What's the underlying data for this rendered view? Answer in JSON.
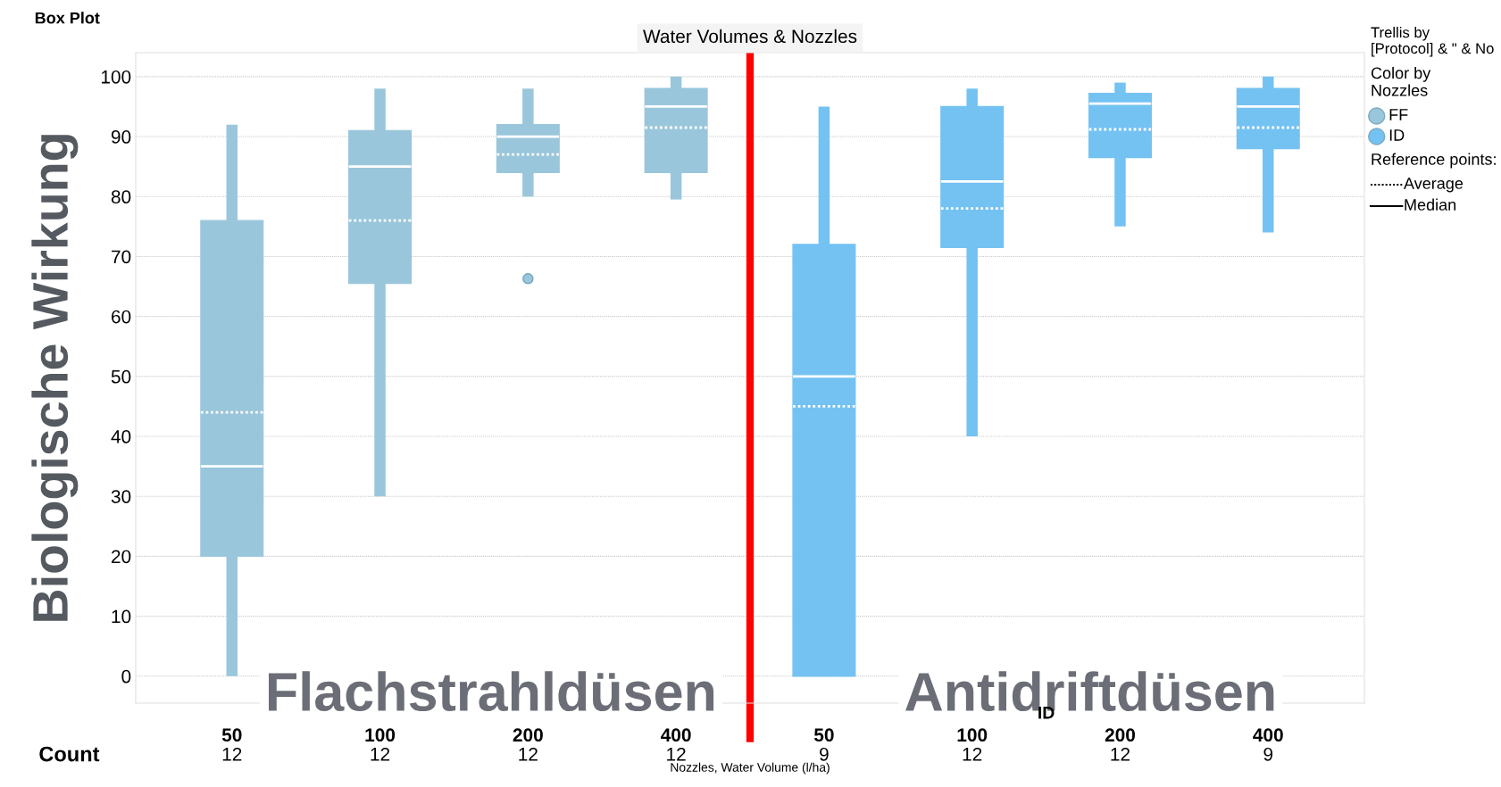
{
  "chart_data": {
    "type": "box",
    "title": "Box Plot",
    "subtitle": "Water Volumes & Nozzles",
    "ylabel": "Biologische Wirkung",
    "xlabel": "Nozzles, Water Volume (l/ha)",
    "legend_title": "Color by\nNozzles",
    "categories": [
      "50",
      "100",
      "200",
      "400",
      "50",
      "100",
      "200",
      "400"
    ],
    "series": [
      {
        "name": "FF",
        "color": "#9ac6db",
        "boxes": [
          {
            "low": 0,
            "q1": 20,
            "median": 35,
            "q3": 76,
            "high": 92,
            "mean": 44
          },
          {
            "low": 30,
            "q1": 65.5,
            "median": 85,
            "q3": 91,
            "high": 98,
            "mean": 76
          },
          {
            "low": 80,
            "q1": 84,
            "median": 90,
            "q3": 92,
            "high": 98,
            "mean": 87,
            "outliers": [
              66.3
            ]
          },
          {
            "low": 79.5,
            "q1": 84,
            "median": 95,
            "q3": 98,
            "high": 100,
            "mean": 91.5
          },
          null,
          null,
          null,
          null
        ]
      },
      {
        "name": "ID",
        "color": "#74c2f2",
        "boxes": [
          null,
          null,
          null,
          null,
          {
            "low": 0,
            "q1": 0,
            "median": 50,
            "q3": 72,
            "high": 95,
            "mean": 45
          },
          {
            "low": 40,
            "q1": 71.5,
            "median": 82.5,
            "q3": 95,
            "high": 98,
            "mean": 78
          },
          {
            "low": 75,
            "q1": 86.5,
            "median": 95.5,
            "q3": 97.2,
            "high": 99,
            "mean": 91.2
          },
          {
            "low": 74,
            "q1": 88,
            "median": 95,
            "q3": 98,
            "high": 100,
            "mean": 91.5
          }
        ]
      }
    ],
    "ylim": [
      -4.5,
      104
    ],
    "yticks": [
      0,
      10,
      20,
      30,
      40,
      50,
      60,
      70,
      80,
      90,
      100
    ],
    "grid": "y",
    "legend": "right",
    "annotations": [
      "Flachstrahldüsen",
      "Antidriftdüsen",
      "ID",
      "Count",
      "12",
      "12",
      "12",
      "12",
      "9",
      "12",
      "12",
      "9",
      "Trellis by\n[Protocol] & \" & No",
      "Reference points:",
      "Average",
      "Median"
    ]
  }
}
